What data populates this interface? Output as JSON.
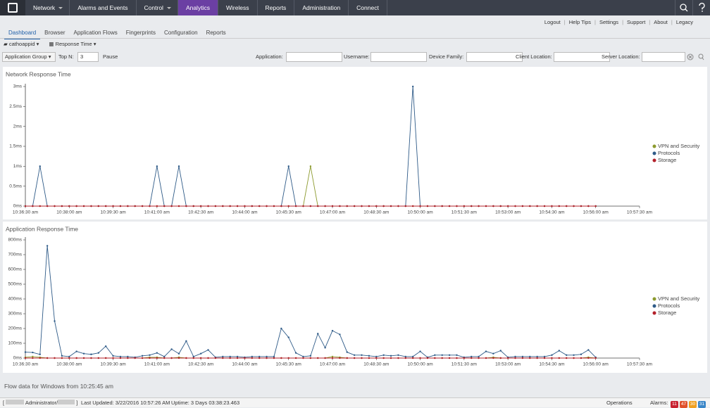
{
  "nav": {
    "items": [
      "Network",
      "Alarms and Events",
      "Control",
      "Analytics",
      "Wireless",
      "Reports",
      "Administration",
      "Connect"
    ],
    "dropdown": [
      true,
      false,
      true,
      false,
      false,
      false,
      false,
      false
    ],
    "active": "Analytics"
  },
  "header_links": [
    "Logout",
    "Help Tips",
    "Settings",
    "Support",
    "About",
    "Legacy"
  ],
  "tabs": [
    "Dashboard",
    "Browser",
    "Application Flows",
    "Fingerprints",
    "Configuration",
    "Reports"
  ],
  "active_tab": "Dashboard",
  "toolbar": {
    "view": "cathoappid",
    "metric": "Response Time",
    "group": "Application Group",
    "topn_label": "Top N:",
    "topn_value": 3,
    "pause": "Pause",
    "filters": [
      "Application:",
      "Username:",
      "Device Family:",
      "Client Location:",
      "Server Location:"
    ]
  },
  "chart_data": [
    {
      "type": "line",
      "title": "Network Response Time",
      "x": [
        "10:36:30 am",
        "10:36:45 am",
        "10:37:00 am",
        "10:37:15 am",
        "10:37:30 am",
        "10:37:45 am",
        "10:38:00 am",
        "10:38:15 am",
        "10:38:30 am",
        "10:38:45 am",
        "10:39:00 am",
        "10:39:15 am",
        "10:39:30 am",
        "10:39:45 am",
        "10:40:00 am",
        "10:40:15 am",
        "10:40:30 am",
        "10:40:45 am",
        "10:41:00 am",
        "10:41:15 am",
        "10:41:30 am",
        "10:41:45 am",
        "10:42:00 am",
        "10:42:15 am",
        "10:42:30 am",
        "10:42:45 am",
        "10:43:00 am",
        "10:43:15 am",
        "10:43:30 am",
        "10:43:45 am",
        "10:44:00 am",
        "10:44:15 am",
        "10:44:30 am",
        "10:44:45 am",
        "10:45:00 am",
        "10:45:15 am",
        "10:45:30 am",
        "10:45:45 am",
        "10:46:00 am",
        "10:46:15 am",
        "10:46:30 am",
        "10:46:45 am",
        "10:47:00 am",
        "10:47:15 am",
        "10:47:30 am",
        "10:47:45 am",
        "10:48:00 am",
        "10:48:15 am",
        "10:48:30 am",
        "10:48:45 am",
        "10:49:00 am",
        "10:49:15 am",
        "10:49:30 am",
        "10:49:45 am",
        "10:50:00 am",
        "10:50:15 am",
        "10:50:30 am",
        "10:50:45 am",
        "10:51:00 am",
        "10:51:15 am",
        "10:51:30 am",
        "10:51:45 am",
        "10:52:00 am",
        "10:52:15 am",
        "10:52:30 am",
        "10:52:45 am",
        "10:53:00 am",
        "10:53:15 am",
        "10:53:30 am",
        "10:53:45 am",
        "10:54:00 am",
        "10:54:15 am",
        "10:54:30 am",
        "10:54:45 am",
        "10:55:00 am",
        "10:55:15 am",
        "10:55:30 am",
        "10:55:45 am",
        "10:56:00 am"
      ],
      "xlim": [
        "10:36:30 am",
        "10:57:30 am"
      ],
      "xticks": [
        "10:36:30 am",
        "10:38:00 am",
        "10:39:30 am",
        "10:41:00 am",
        "10:42:30 am",
        "10:44:00 am",
        "10:45:30 am",
        "10:47:00 am",
        "10:48:30 am",
        "10:50:00 am",
        "10:51:30 am",
        "10:53:00 am",
        "10:54:30 am",
        "10:56:00 am",
        "10:57:30 am"
      ],
      "ylim": [
        0,
        3
      ],
      "yticks": [
        {
          "value": 0,
          "label": "0ms"
        },
        {
          "value": 0.5,
          "label": "0.5ms"
        },
        {
          "value": 1,
          "label": "1ms"
        },
        {
          "value": 1.5,
          "label": "1.5ms"
        },
        {
          "value": 2,
          "label": "2ms"
        },
        {
          "value": 2.5,
          "label": "2.5ms"
        },
        {
          "value": 3,
          "label": "3ms"
        }
      ],
      "legend": "right",
      "series": [
        {
          "name": "VPN and Security",
          "color": "#8c9a2e",
          "values": [
            0,
            0,
            0,
            0,
            0,
            0,
            0,
            0,
            0,
            0,
            0,
            0,
            0,
            0,
            0,
            0,
            0,
            0,
            0,
            0,
            0,
            0,
            0,
            0,
            0,
            0,
            0,
            0,
            0,
            0,
            0,
            0,
            0,
            0,
            0,
            0,
            0,
            0,
            0,
            1,
            0,
            0,
            0,
            0,
            0,
            0,
            0,
            0,
            0,
            0,
            0,
            0,
            0,
            0,
            0,
            0,
            0,
            0,
            0,
            0,
            0,
            0,
            0,
            0,
            0,
            0,
            0,
            0,
            0,
            0,
            0,
            0,
            0,
            0,
            0,
            0,
            0,
            0,
            0
          ]
        },
        {
          "name": "Protocols",
          "color": "#2f5b88",
          "values": [
            0,
            0,
            1,
            0,
            0,
            0,
            0,
            0,
            0,
            0,
            0,
            0,
            0,
            0,
            0,
            0,
            0,
            0,
            1,
            0,
            0,
            1,
            0,
            0,
            0,
            0,
            0,
            0,
            0,
            0,
            0,
            0,
            0,
            0,
            0,
            0,
            1,
            0,
            0,
            0,
            0,
            0,
            0,
            0,
            0,
            0,
            0,
            0,
            0,
            0,
            0,
            0,
            0,
            3,
            0,
            0,
            0,
            0,
            0,
            0,
            0,
            0,
            0,
            0,
            0,
            0,
            0,
            0,
            0,
            0,
            0,
            0,
            0,
            0,
            0,
            0,
            0,
            0,
            0
          ]
        },
        {
          "name": "Storage",
          "color": "#b3202a",
          "values": [
            0,
            0,
            0,
            0,
            0,
            0,
            0,
            0,
            0,
            0,
            0,
            0,
            0,
            0,
            0,
            0,
            0,
            0,
            0,
            0,
            0,
            0,
            0,
            0,
            0,
            0,
            0,
            0,
            0,
            0,
            0,
            0,
            0,
            0,
            0,
            0,
            0,
            0,
            0,
            0,
            0,
            0,
            0,
            0,
            0,
            0,
            0,
            0,
            0,
            0,
            0,
            0,
            0,
            0,
            0,
            0,
            0,
            0,
            0,
            0,
            0,
            0,
            0,
            0,
            0,
            0,
            0,
            0,
            0,
            0,
            0,
            0,
            0,
            0,
            0,
            0,
            0,
            0,
            0
          ]
        }
      ]
    },
    {
      "type": "line",
      "title": "Application Response Time",
      "x": [
        "10:36:30 am",
        "10:36:45 am",
        "10:37:00 am",
        "10:37:15 am",
        "10:37:30 am",
        "10:37:45 am",
        "10:38:00 am",
        "10:38:15 am",
        "10:38:30 am",
        "10:38:45 am",
        "10:39:00 am",
        "10:39:15 am",
        "10:39:30 am",
        "10:39:45 am",
        "10:40:00 am",
        "10:40:15 am",
        "10:40:30 am",
        "10:40:45 am",
        "10:41:00 am",
        "10:41:15 am",
        "10:41:30 am",
        "10:41:45 am",
        "10:42:00 am",
        "10:42:15 am",
        "10:42:30 am",
        "10:42:45 am",
        "10:43:00 am",
        "10:43:15 am",
        "10:43:30 am",
        "10:43:45 am",
        "10:44:00 am",
        "10:44:15 am",
        "10:44:30 am",
        "10:44:45 am",
        "10:45:00 am",
        "10:45:15 am",
        "10:45:30 am",
        "10:45:45 am",
        "10:46:00 am",
        "10:46:15 am",
        "10:46:30 am",
        "10:46:45 am",
        "10:47:00 am",
        "10:47:15 am",
        "10:47:30 am",
        "10:47:45 am",
        "10:48:00 am",
        "10:48:15 am",
        "10:48:30 am",
        "10:48:45 am",
        "10:49:00 am",
        "10:49:15 am",
        "10:49:30 am",
        "10:49:45 am",
        "10:50:00 am",
        "10:50:15 am",
        "10:50:30 am",
        "10:50:45 am",
        "10:51:00 am",
        "10:51:15 am",
        "10:51:30 am",
        "10:51:45 am",
        "10:52:00 am",
        "10:52:15 am",
        "10:52:30 am",
        "10:52:45 am",
        "10:53:00 am",
        "10:53:15 am",
        "10:53:30 am",
        "10:53:45 am",
        "10:54:00 am",
        "10:54:15 am",
        "10:54:30 am",
        "10:54:45 am",
        "10:55:00 am",
        "10:55:15 am",
        "10:55:30 am",
        "10:55:45 am",
        "10:56:00 am"
      ],
      "xlim": [
        "10:36:30 am",
        "10:57:30 am"
      ],
      "xticks": [
        "10:36:30 am",
        "10:38:00 am",
        "10:39:30 am",
        "10:41:00 am",
        "10:42:30 am",
        "10:44:00 am",
        "10:45:30 am",
        "10:47:00 am",
        "10:48:30 am",
        "10:50:00 am",
        "10:51:30 am",
        "10:53:00 am",
        "10:54:30 am",
        "10:56:00 am",
        "10:57:30 am"
      ],
      "ylim": [
        0,
        800
      ],
      "yticks": [
        {
          "value": 0,
          "label": "0ms"
        },
        {
          "value": 100,
          "label": "100ms"
        },
        {
          "value": 200,
          "label": "200ms"
        },
        {
          "value": 300,
          "label": "300ms"
        },
        {
          "value": 400,
          "label": "400ms"
        },
        {
          "value": 500,
          "label": "500ms"
        },
        {
          "value": 600,
          "label": "600ms"
        },
        {
          "value": 700,
          "label": "700ms"
        },
        {
          "value": 800,
          "label": "800ms"
        }
      ],
      "legend": "right",
      "series": [
        {
          "name": "VPN and Security",
          "color": "#8c9a2e",
          "values": [
            5,
            10,
            5,
            0,
            0,
            0,
            0,
            0,
            0,
            0,
            0,
            0,
            0,
            0,
            0,
            0,
            0,
            5,
            5,
            0,
            0,
            5,
            0,
            0,
            0,
            0,
            0,
            0,
            0,
            0,
            0,
            0,
            0,
            0,
            0,
            0,
            0,
            0,
            0,
            0,
            0,
            0,
            10,
            5,
            0,
            0,
            0,
            0,
            0,
            0,
            0,
            0,
            0,
            0,
            0,
            0,
            0,
            0,
            0,
            0,
            0,
            0,
            0,
            0,
            5,
            0,
            0,
            0,
            0,
            0,
            0,
            0,
            0,
            0,
            0,
            0,
            0,
            5,
            0
          ]
        },
        {
          "name": "Protocols",
          "color": "#2f5b88",
          "values": [
            40,
            38,
            25,
            760,
            250,
            15,
            10,
            45,
            30,
            25,
            35,
            80,
            15,
            10,
            10,
            5,
            15,
            20,
            35,
            10,
            60,
            30,
            115,
            10,
            30,
            55,
            5,
            10,
            10,
            10,
            5,
            10,
            10,
            10,
            10,
            200,
            140,
            35,
            10,
            15,
            165,
            70,
            185,
            160,
            40,
            20,
            20,
            15,
            10,
            20,
            15,
            20,
            10,
            10,
            45,
            5,
            20,
            20,
            20,
            20,
            5,
            10,
            10,
            45,
            30,
            50,
            5,
            10,
            10,
            10,
            10,
            10,
            20,
            50,
            20,
            20,
            25,
            55,
            5
          ]
        },
        {
          "name": "Storage",
          "color": "#b3202a",
          "values": [
            0,
            0,
            0,
            0,
            0,
            0,
            0,
            0,
            0,
            0,
            0,
            0,
            0,
            0,
            0,
            0,
            0,
            0,
            0,
            0,
            0,
            0,
            0,
            0,
            0,
            0,
            0,
            0,
            0,
            0,
            0,
            0,
            0,
            0,
            0,
            0,
            0,
            0,
            0,
            0,
            0,
            0,
            0,
            0,
            0,
            0,
            0,
            0,
            0,
            0,
            0,
            0,
            0,
            0,
            0,
            0,
            0,
            0,
            0,
            0,
            0,
            0,
            0,
            0,
            0,
            0,
            0,
            0,
            0,
            0,
            0,
            0,
            0,
            0,
            0,
            0,
            0,
            0,
            0
          ]
        }
      ]
    }
  ],
  "footer": {
    "flow": "Flow data for Windows from 10:25:45 am",
    "user": "Administrator/",
    "last_updated": "Last Updated: 3/22/2016 10:57:26 AM",
    "uptime": "Uptime: 3 Days 03:38:23.463",
    "operations": "Operations",
    "alarms_label": "Alarms:",
    "alarms": [
      11,
      47,
      30,
      31
    ]
  }
}
